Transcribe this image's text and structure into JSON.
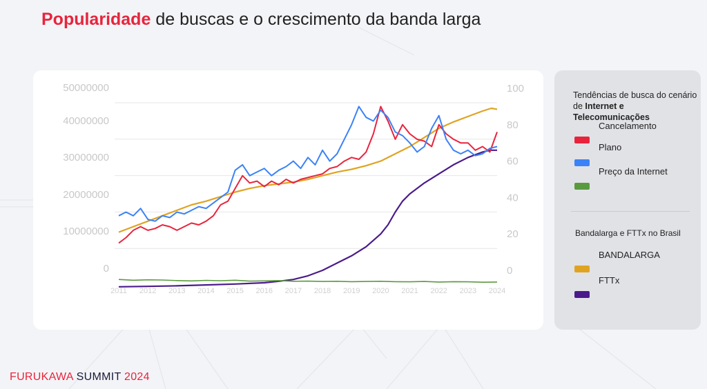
{
  "header": {
    "title_highlight": "Popularidade",
    "title_rest": " de buscas e o crescimento da banda larga"
  },
  "footer": {
    "brand": "FURUKAWA ",
    "event": "SUMMIT ",
    "year": "2024"
  },
  "legend": {
    "heading_prefix": "Tendências de busca do cenário de ",
    "heading_bold": "Internet e Telecomunicações",
    "search_items": [
      {
        "label": "Cancelamento",
        "color": "#e8243c"
      },
      {
        "label": "Plano",
        "color": "#3b82f6"
      },
      {
        "label": "Preço da Internet",
        "color": "#5a9a3f"
      }
    ],
    "broadband_heading": "Bandalarga e FTTx no Brasil",
    "broadband_items": [
      {
        "label": "BANDALARGA",
        "color": "#e0a321"
      },
      {
        "label": "FTTx",
        "color": "#4a1a8a"
      }
    ]
  },
  "chart_data": {
    "type": "line",
    "x_tick_labels": [
      "2011",
      "2012",
      "2013",
      "2014",
      "2015",
      "2016",
      "2017",
      "2018",
      "2019",
      "2020",
      "2021",
      "2022",
      "2023",
      "2024"
    ],
    "x_range": [
      2011,
      2024
    ],
    "y_left": {
      "ticks": [
        "50000000",
        "40000000",
        "30000000",
        "20000000",
        "10000000",
        "0"
      ],
      "range": [
        0,
        50000000
      ]
    },
    "y_right": {
      "ticks": [
        "100",
        "80",
        "60",
        "40",
        "20",
        "0"
      ],
      "range": [
        0,
        100
      ]
    },
    "series": [
      {
        "name": "Cancelamento",
        "axis": "right",
        "color": "#e8243c",
        "points": [
          [
            2011,
            15
          ],
          [
            2011.25,
            18
          ],
          [
            2011.5,
            22
          ],
          [
            2011.75,
            24
          ],
          [
            2012,
            22
          ],
          [
            2012.25,
            23
          ],
          [
            2012.5,
            25
          ],
          [
            2012.75,
            24
          ],
          [
            2013,
            22
          ],
          [
            2013.25,
            24
          ],
          [
            2013.5,
            26
          ],
          [
            2013.75,
            25
          ],
          [
            2014,
            27
          ],
          [
            2014.25,
            30
          ],
          [
            2014.5,
            36
          ],
          [
            2014.75,
            38
          ],
          [
            2015,
            45
          ],
          [
            2015.25,
            52
          ],
          [
            2015.5,
            48
          ],
          [
            2015.75,
            49
          ],
          [
            2016,
            46
          ],
          [
            2016.25,
            49
          ],
          [
            2016.5,
            47
          ],
          [
            2016.75,
            50
          ],
          [
            2017,
            48
          ],
          [
            2017.25,
            50
          ],
          [
            2017.5,
            51
          ],
          [
            2017.75,
            52
          ],
          [
            2018,
            53
          ],
          [
            2018.25,
            56
          ],
          [
            2018.5,
            57
          ],
          [
            2018.75,
            60
          ],
          [
            2019,
            62
          ],
          [
            2019.25,
            61
          ],
          [
            2019.5,
            65
          ],
          [
            2019.75,
            75
          ],
          [
            2020,
            90
          ],
          [
            2020.25,
            82
          ],
          [
            2020.5,
            72
          ],
          [
            2020.75,
            80
          ],
          [
            2021,
            75
          ],
          [
            2021.25,
            72
          ],
          [
            2021.5,
            71
          ],
          [
            2021.75,
            68
          ],
          [
            2022,
            80
          ],
          [
            2022.25,
            75
          ],
          [
            2022.5,
            72
          ],
          [
            2022.75,
            70
          ],
          [
            2023,
            70
          ],
          [
            2023.25,
            66
          ],
          [
            2023.5,
            68
          ],
          [
            2023.75,
            65
          ],
          [
            2024,
            76
          ]
        ]
      },
      {
        "name": "Plano",
        "axis": "right",
        "color": "#3b82f6",
        "points": [
          [
            2011,
            30
          ],
          [
            2011.25,
            32
          ],
          [
            2011.5,
            30
          ],
          [
            2011.75,
            34
          ],
          [
            2012,
            28
          ],
          [
            2012.25,
            27
          ],
          [
            2012.5,
            30
          ],
          [
            2012.75,
            29
          ],
          [
            2013,
            32
          ],
          [
            2013.25,
            31
          ],
          [
            2013.5,
            33
          ],
          [
            2013.75,
            35
          ],
          [
            2014,
            34
          ],
          [
            2014.25,
            37
          ],
          [
            2014.5,
            40
          ],
          [
            2014.75,
            43
          ],
          [
            2015,
            55
          ],
          [
            2015.25,
            58
          ],
          [
            2015.5,
            52
          ],
          [
            2015.75,
            54
          ],
          [
            2016,
            56
          ],
          [
            2016.25,
            52
          ],
          [
            2016.5,
            55
          ],
          [
            2016.75,
            57
          ],
          [
            2017,
            60
          ],
          [
            2017.25,
            56
          ],
          [
            2017.5,
            62
          ],
          [
            2017.75,
            58
          ],
          [
            2018,
            66
          ],
          [
            2018.25,
            60
          ],
          [
            2018.5,
            64
          ],
          [
            2018.75,
            72
          ],
          [
            2019,
            80
          ],
          [
            2019.25,
            90
          ],
          [
            2019.5,
            84
          ],
          [
            2019.75,
            82
          ],
          [
            2020,
            88
          ],
          [
            2020.25,
            84
          ],
          [
            2020.5,
            76
          ],
          [
            2020.75,
            74
          ],
          [
            2021,
            70
          ],
          [
            2021.25,
            65
          ],
          [
            2021.5,
            68
          ],
          [
            2021.75,
            78
          ],
          [
            2022,
            85
          ],
          [
            2022.25,
            72
          ],
          [
            2022.5,
            66
          ],
          [
            2022.75,
            64
          ],
          [
            2023,
            66
          ],
          [
            2023.25,
            63
          ],
          [
            2023.5,
            64
          ],
          [
            2023.75,
            67
          ],
          [
            2024,
            68
          ]
        ]
      },
      {
        "name": "Preço da Internet",
        "axis": "right",
        "color": "#5a9a3f",
        "points": [
          [
            2011,
            -5
          ],
          [
            2011.5,
            -5.4
          ],
          [
            2012,
            -5.2
          ],
          [
            2012.5,
            -5.3
          ],
          [
            2013,
            -5.6
          ],
          [
            2013.5,
            -5.8
          ],
          [
            2014,
            -5.5
          ],
          [
            2014.5,
            -5.7
          ],
          [
            2015,
            -5.4
          ],
          [
            2015.5,
            -5.9
          ],
          [
            2016,
            -5.8
          ],
          [
            2016.5,
            -5.6
          ],
          [
            2017,
            -6
          ],
          [
            2017.5,
            -5.9
          ],
          [
            2018,
            -6.1
          ],
          [
            2018.5,
            -6
          ],
          [
            2019,
            -6.2
          ],
          [
            2019.5,
            -6.1
          ],
          [
            2020,
            -6
          ],
          [
            2020.5,
            -6.2
          ],
          [
            2021,
            -6.3
          ],
          [
            2021.5,
            -6.1
          ],
          [
            2022,
            -6.4
          ],
          [
            2022.5,
            -6.2
          ],
          [
            2023,
            -6.3
          ],
          [
            2023.5,
            -6.5
          ],
          [
            2024,
            -6.4
          ]
        ]
      },
      {
        "name": "BANDALARGA",
        "axis": "right",
        "color": "#e0a321",
        "points": [
          [
            2011,
            21
          ],
          [
            2011.5,
            24
          ],
          [
            2012,
            27
          ],
          [
            2012.5,
            30
          ],
          [
            2013,
            33
          ],
          [
            2013.5,
            36
          ],
          [
            2014,
            38
          ],
          [
            2014.5,
            40.5
          ],
          [
            2015,
            43
          ],
          [
            2015.5,
            45
          ],
          [
            2016,
            46.5
          ],
          [
            2016.5,
            47.5
          ],
          [
            2017,
            48.5
          ],
          [
            2017.5,
            50
          ],
          [
            2018,
            52
          ],
          [
            2018.5,
            54
          ],
          [
            2019,
            55.5
          ],
          [
            2019.5,
            57.5
          ],
          [
            2020,
            60
          ],
          [
            2020.5,
            64
          ],
          [
            2021,
            68
          ],
          [
            2021.5,
            73
          ],
          [
            2022,
            78
          ],
          [
            2022.5,
            81.5
          ],
          [
            2023,
            84.5
          ],
          [
            2023.5,
            87.5
          ],
          [
            2023.8,
            89
          ],
          [
            2024,
            88.5
          ]
        ]
      },
      {
        "name": "FTTx",
        "axis": "right",
        "color": "#4a1a8a",
        "points": [
          [
            2011,
            -9
          ],
          [
            2012,
            -8.8
          ],
          [
            2013,
            -8.5
          ],
          [
            2014,
            -8
          ],
          [
            2015,
            -7.5
          ],
          [
            2016,
            -6.8
          ],
          [
            2016.5,
            -6
          ],
          [
            2017,
            -5
          ],
          [
            2017.5,
            -3
          ],
          [
            2018,
            0
          ],
          [
            2018.5,
            4
          ],
          [
            2019,
            8
          ],
          [
            2019.5,
            13
          ],
          [
            2020,
            20
          ],
          [
            2020.25,
            25
          ],
          [
            2020.5,
            32
          ],
          [
            2020.75,
            38
          ],
          [
            2021,
            42
          ],
          [
            2021.5,
            48
          ],
          [
            2022,
            53
          ],
          [
            2022.5,
            58
          ],
          [
            2023,
            62
          ],
          [
            2023.5,
            65
          ],
          [
            2023.75,
            66
          ],
          [
            2024,
            66
          ]
        ]
      }
    ]
  }
}
